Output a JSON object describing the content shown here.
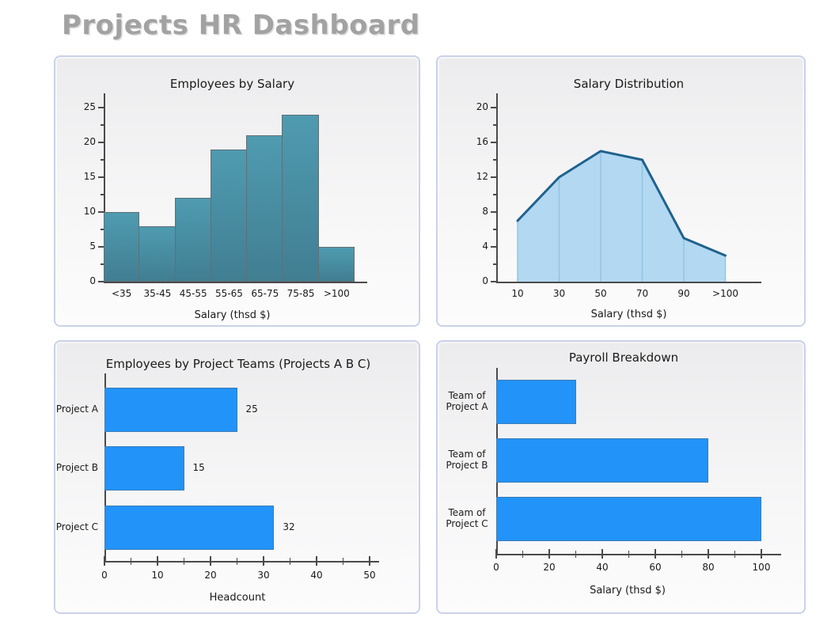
{
  "title": "Projects HR Dashboard",
  "colors": {
    "page_title": "#a2a2a2",
    "panel_border": "#c9d2ea",
    "axis": "#4a4a4a",
    "text": "#1a1a1a"
  },
  "chart_data": [
    {
      "type": "histogram",
      "title": "Employees by Salary",
      "xlabel": "Salary (thsd $)",
      "categories": [
        "<35",
        "35-45",
        "45-55",
        "55-65",
        "65-75",
        "75-85",
        ">100"
      ],
      "values": [
        10,
        8,
        12,
        19,
        21,
        24,
        5
      ],
      "yticks": [
        0,
        5,
        10,
        15,
        20,
        25
      ],
      "ylim": [
        0,
        27
      ],
      "grid": false,
      "legend": false,
      "bar_color_top": "#4f9bb0",
      "bar_color_bottom": "#417e92",
      "bar_border": "#5f7077"
    },
    {
      "type": "area",
      "title": "Salary Distribution",
      "xlabel": "Salary (thsd $)",
      "categories": [
        "10",
        "30",
        "50",
        "70",
        "90",
        ">100"
      ],
      "values": [
        7,
        12,
        15,
        14,
        5,
        3
      ],
      "yticks": [
        0,
        4,
        8,
        12,
        16,
        20
      ],
      "ylim": [
        0,
        21.6
      ],
      "grid": false,
      "legend": false,
      "fill_color": "#b3d8f1",
      "line_color": "#1f628e",
      "divider_color": "#93c4e4"
    },
    {
      "type": "hbar",
      "title": "Employees by Project Teams (Projects A B C)",
      "xlabel": "Headcount",
      "categories": [
        "Project A",
        "Project B",
        "Project C"
      ],
      "values": [
        25,
        15,
        32
      ],
      "value_labels": [
        "25",
        "15",
        "32"
      ],
      "xticks": [
        0,
        10,
        20,
        30,
        40,
        50
      ],
      "xlim": [
        0,
        52
      ],
      "grid": false,
      "legend": false,
      "bar_color": "#2193f9"
    },
    {
      "type": "hbar",
      "title": "Payroll Breakdown",
      "xlabel": "Salary (thsd $)",
      "categories": [
        "Team of Project A",
        "Team of Project B",
        "Team of Project C"
      ],
      "category_lines": [
        [
          "Team of",
          "Project A"
        ],
        [
          "Team of",
          "Project B"
        ],
        [
          "Team of",
          "Project C"
        ]
      ],
      "values": [
        30,
        80,
        100
      ],
      "xticks": [
        0,
        20,
        40,
        60,
        80,
        100
      ],
      "xlim": [
        0,
        104
      ],
      "grid": false,
      "legend": false,
      "bar_color": "#2193f9"
    }
  ]
}
